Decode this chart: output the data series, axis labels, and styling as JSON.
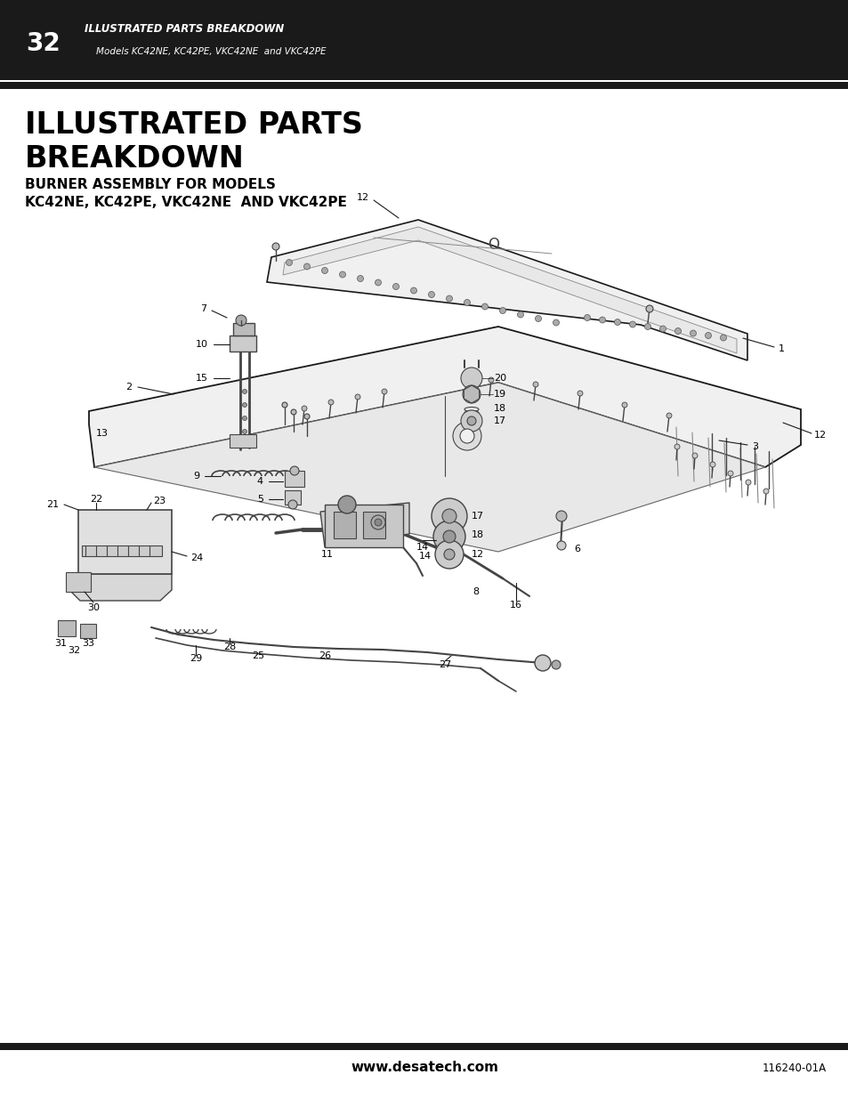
{
  "page_number": "32",
  "header_title": "ILLUSTRATED PARTS BREAKDOWN",
  "header_subtitle": "Models KC42NE, KC42PE, VKC42NE  and VKC42PE",
  "section_title_line1": "ILLUSTRATED PARTS",
  "section_title_line2": "BREAKDOWN",
  "subsection_title_line1": "BURNER ASSEMBLY FOR MODELS",
  "subsection_title_line2": "KC42NE, KC42PE, VKC42NE  AND VKC42PE",
  "footer_website": "www.desatech.com",
  "footer_code": "116240-01A",
  "bg_color": "#ffffff",
  "header_bg": "#1a1a1a",
  "bar_color": "#1a1a1a",
  "title_color": "#000000",
  "line_color": "#1a1a1a",
  "light_gray": "#d0d0d0",
  "mid_gray": "#888888",
  "dark_gray": "#444444"
}
